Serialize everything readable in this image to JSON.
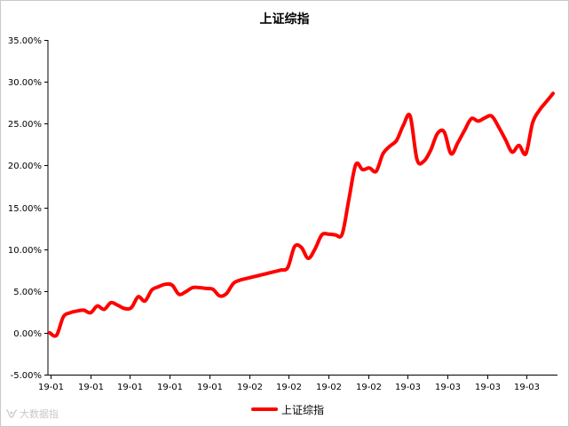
{
  "chart_data": {
    "type": "line",
    "title": "上证综指",
    "xlabel": "",
    "ylabel": "",
    "ylim": [
      -5,
      35
    ],
    "yticks": [
      -5,
      0,
      5,
      10,
      15,
      20,
      25,
      30,
      35
    ],
    "ytick_labels": [
      "-5.00%",
      "0.00%",
      "5.00%",
      "10.00%",
      "15.00%",
      "20.00%",
      "25.00%",
      "30.00%",
      "35.00%"
    ],
    "xtick_labels": [
      "19-01",
      "19-01",
      "19-01",
      "19-01",
      "19-01",
      "19-02",
      "19-02",
      "19-02",
      "19-02",
      "19-03",
      "19-03",
      "19-03",
      "19-03"
    ],
    "grid": false,
    "legend_position": "bottom",
    "series": [
      {
        "name": "上证综指",
        "color": "#ff0000",
        "values": [
          0.0,
          -0.3,
          1.9,
          2.4,
          2.6,
          2.7,
          2.4,
          3.2,
          2.8,
          3.6,
          3.3,
          2.9,
          3.0,
          4.3,
          3.8,
          5.1,
          5.5,
          5.8,
          5.7,
          4.6,
          4.9,
          5.4,
          5.4,
          5.3,
          5.2,
          4.4,
          4.7,
          5.9,
          6.3,
          6.5,
          6.7,
          6.9,
          7.1,
          7.3,
          7.5,
          7.8,
          10.3,
          10.2,
          8.9,
          10.0,
          11.7,
          11.8,
          11.7,
          11.8,
          16.0,
          20.1,
          19.5,
          19.7,
          19.3,
          21.4,
          22.3,
          23.0,
          24.8,
          25.9,
          20.7,
          20.5,
          21.8,
          23.8,
          24.0,
          21.4,
          22.7,
          24.2,
          25.6,
          25.3,
          25.7,
          25.9,
          24.6,
          23.1,
          21.6,
          22.4,
          21.4,
          25.1,
          26.6,
          27.6,
          28.6
        ]
      }
    ]
  }
}
